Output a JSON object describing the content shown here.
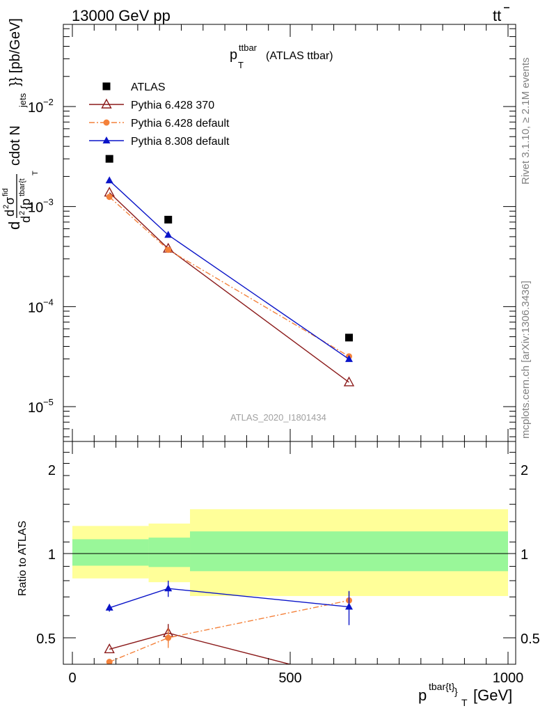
{
  "header": {
    "left": "13000 GeV pp",
    "right_main": "tt",
    "right_bar": "̄"
  },
  "side_labels": {
    "rivet": "Rivet 3.1.10, ≥ 2.1M events",
    "mcplots": "mcplots.cern.ch [arXiv:1306.3436]"
  },
  "main_plot": {
    "title_p": "p",
    "title_sub": "T",
    "title_sup": "ttbar",
    "title_rest": "(ATLAS ttbar)",
    "watermark": "ATLAS_2020_I1801434",
    "ylabel": "d d²σ^fid / d² {p^tbar{t}_T cdot N_jets}} [pb/GeV]",
    "ylabel_parts": {
      "a": "d",
      "b": "d",
      "c": "2",
      "d": "σ",
      "e": "fid",
      "f": "d",
      "g": "2",
      "h": "{p",
      "i": "tbar{t",
      "j": "T",
      "k": "cdot N",
      "l": "jets",
      "m": "}} [pb/GeV]"
    },
    "yticks": [
      {
        "base": "10",
        "exp": "−2",
        "value": 0.01
      },
      {
        "base": "10",
        "exp": "−3",
        "value": 0.001
      },
      {
        "base": "10",
        "exp": "−4",
        "value": 0.0001
      },
      {
        "base": "10",
        "exp": "−5",
        "value": 1e-05
      }
    ]
  },
  "ratio_plot": {
    "ylabel": "Ratio to ATLAS",
    "yticks": [
      "0.5",
      "1",
      "2"
    ],
    "xticks": [
      "0",
      "500",
      "1000"
    ],
    "xlabel_p": "p",
    "xlabel_sup": "tbar{t}",
    "xlabel_sub": "}",
    "xlabel_subT": "T",
    "xlabel_unit": "[GeV]"
  },
  "legend": [
    {
      "name": "ATLAS",
      "color": "#000000",
      "marker": "square"
    },
    {
      "name": "Pythia 6.428 370",
      "color": "#8b1a1a",
      "marker": "open-triangle"
    },
    {
      "name": "Pythia 6.428 default",
      "color": "#f4813a",
      "marker": "circle"
    },
    {
      "name": "Pythia 8.308 default",
      "color": "#0a14c8",
      "marker": "triangle"
    }
  ],
  "chart_data": {
    "type": "scatter",
    "main": {
      "log_y": true,
      "ylim": [
        5e-06,
        0.05
      ],
      "xlim": [
        -20,
        1020
      ],
      "series": [
        {
          "name": "ATLAS",
          "x": [
            85,
            220,
            635
          ],
          "y": [
            0.003,
            0.00074,
            4.9e-05
          ]
        },
        {
          "name": "Pythia 6.428 370",
          "x": [
            85,
            220,
            635
          ],
          "y": [
            0.00138,
            0.00038,
            1.75e-05
          ]
        },
        {
          "name": "Pythia 6.428 default",
          "x": [
            85,
            220,
            635
          ],
          "y": [
            0.00125,
            0.00037,
            3.18e-05
          ]
        },
        {
          "name": "Pythia 8.308 default",
          "x": [
            85,
            220,
            635
          ],
          "y": [
            0.00182,
            0.00052,
            2.98e-05
          ]
        }
      ]
    },
    "ratio": {
      "log_y": true,
      "ylim": [
        0.4,
        2.4
      ],
      "xlim": [
        -20,
        1020
      ],
      "bands": [
        {
          "x_from": 0,
          "x_to": 175,
          "inner": [
            0.905,
            1.125
          ],
          "outer": [
            0.815,
            1.255
          ]
        },
        {
          "x_from": 175,
          "x_to": 270,
          "inner": [
            0.895,
            1.14
          ],
          "outer": [
            0.79,
            1.28
          ]
        },
        {
          "x_from": 270,
          "x_to": 1000,
          "inner": [
            0.865,
            1.2
          ],
          "outer": [
            0.705,
            1.44
          ]
        }
      ],
      "series": [
        {
          "name": "Pythia 6.428 370",
          "x": [
            85,
            220,
            635
          ],
          "y": [
            0.455,
            0.52,
            0.355
          ]
        },
        {
          "name": "Pythia 6.428 default",
          "x": [
            85,
            220,
            635
          ],
          "y": [
            0.41,
            0.5,
            0.68
          ]
        },
        {
          "name": "Pythia 8.308 default",
          "x": [
            85,
            220,
            635
          ],
          "y": [
            0.64,
            0.75,
            0.645
          ]
        }
      ]
    }
  }
}
